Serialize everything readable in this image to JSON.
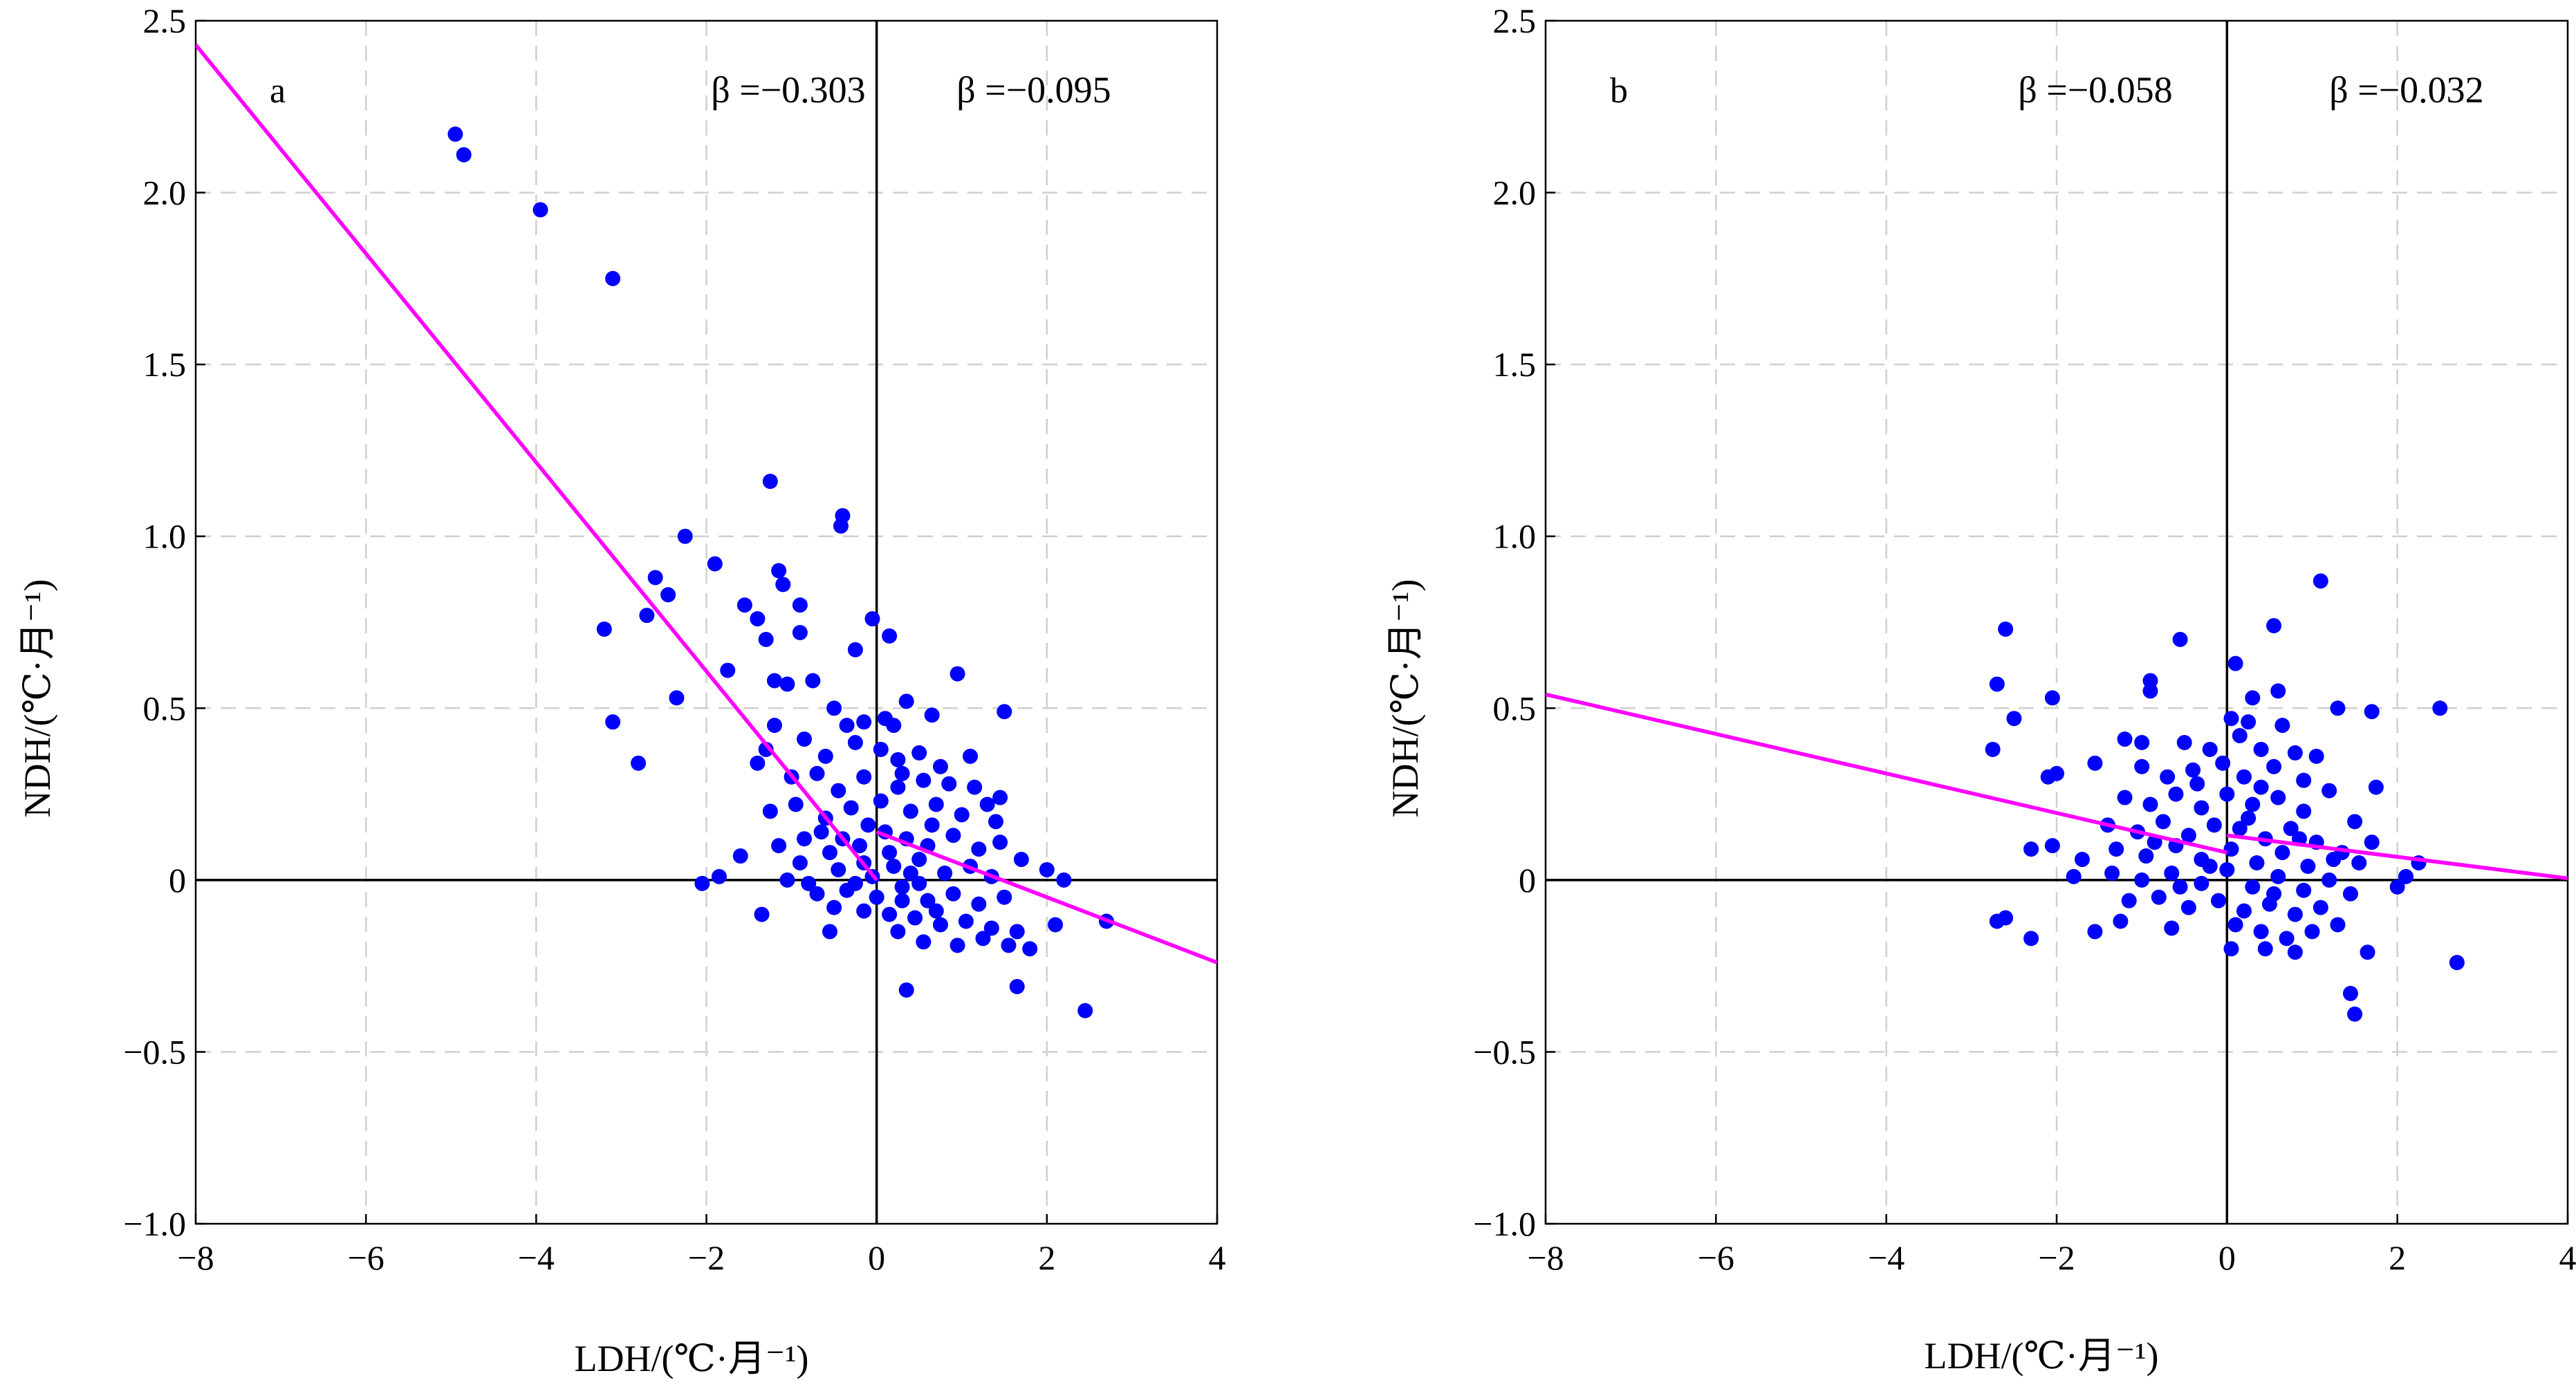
{
  "chart_data": [
    {
      "type": "scatter",
      "panel_label": "a",
      "xlabel": "LDH/(℃·月⁻¹)",
      "ylabel": "NDH/(℃·月⁻¹)",
      "xlim": [
        -8,
        4
      ],
      "ylim": [
        -1.0,
        2.5
      ],
      "xticks": [
        -8,
        -6,
        -4,
        -2,
        0,
        2,
        4
      ],
      "xtick_labels": [
        "−8",
        "−6",
        "−4",
        "−2",
        "0",
        "2",
        "4"
      ],
      "yticks": [
        -1.0,
        -0.5,
        0,
        0.5,
        1.0,
        1.5,
        2.0,
        2.5
      ],
      "ytick_labels": [
        "−1.0",
        "−0.5",
        "0",
        "0.5",
        "1.0",
        "1.5",
        "2.0",
        "2.5"
      ],
      "grid": true,
      "point_color": "#0000ff",
      "line_color": "#ff00ff",
      "fit_lines": [
        {
          "x": [
            -8,
            0
          ],
          "y": [
            2.43,
            0.0
          ],
          "beta_text": "β =−0.303"
        },
        {
          "x": [
            0,
            4
          ],
          "y": [
            0.14,
            -0.24
          ],
          "beta_text": "β =−0.095"
        }
      ],
      "points": [
        [
          -4.95,
          2.17
        ],
        [
          -4.85,
          2.11
        ],
        [
          -3.95,
          1.95
        ],
        [
          -3.1,
          1.75
        ],
        [
          -1.25,
          1.16
        ],
        [
          -0.4,
          1.06
        ],
        [
          -0.42,
          1.03
        ],
        [
          -2.25,
          1.0
        ],
        [
          -2.6,
          0.88
        ],
        [
          -2.45,
          0.83
        ],
        [
          -1.9,
          0.92
        ],
        [
          -1.15,
          0.9
        ],
        [
          -1.1,
          0.86
        ],
        [
          -3.2,
          0.73
        ],
        [
          -2.7,
          0.77
        ],
        [
          -1.55,
          0.8
        ],
        [
          -1.4,
          0.76
        ],
        [
          -0.9,
          0.8
        ],
        [
          -0.9,
          0.72
        ],
        [
          -1.3,
          0.7
        ],
        [
          -1.75,
          0.61
        ],
        [
          -0.05,
          0.76
        ],
        [
          0.15,
          0.71
        ],
        [
          -0.25,
          0.67
        ],
        [
          -1.2,
          0.58
        ],
        [
          -0.75,
          0.58
        ],
        [
          -1.05,
          0.57
        ],
        [
          0.95,
          0.6
        ],
        [
          -2.35,
          0.53
        ],
        [
          -3.1,
          0.46
        ],
        [
          -0.5,
          0.5
        ],
        [
          0.35,
          0.52
        ],
        [
          -0.35,
          0.45
        ],
        [
          -0.15,
          0.46
        ],
        [
          0.1,
          0.47
        ],
        [
          0.2,
          0.45
        ],
        [
          0.65,
          0.48
        ],
        [
          1.5,
          0.49
        ],
        [
          -2.8,
          0.34
        ],
        [
          -1.3,
          0.38
        ],
        [
          -1.2,
          0.45
        ],
        [
          -0.85,
          0.41
        ],
        [
          -0.6,
          0.36
        ],
        [
          -0.25,
          0.4
        ],
        [
          0.05,
          0.38
        ],
        [
          0.25,
          0.35
        ],
        [
          0.5,
          0.37
        ],
        [
          0.75,
          0.33
        ],
        [
          1.1,
          0.36
        ],
        [
          1.45,
          0.24
        ],
        [
          -1.4,
          0.34
        ],
        [
          -1.0,
          0.3
        ],
        [
          -0.7,
          0.31
        ],
        [
          -0.45,
          0.26
        ],
        [
          -0.15,
          0.3
        ],
        [
          0.3,
          0.31
        ],
        [
          0.55,
          0.29
        ],
        [
          0.85,
          0.28
        ],
        [
          1.15,
          0.27
        ],
        [
          1.3,
          0.22
        ],
        [
          -1.6,
          0.07
        ],
        [
          -1.85,
          0.01
        ],
        [
          -2.05,
          -0.01
        ],
        [
          -1.35,
          -0.1
        ],
        [
          -1.25,
          0.2
        ],
        [
          -0.95,
          0.22
        ],
        [
          -0.6,
          0.18
        ],
        [
          -0.3,
          0.21
        ],
        [
          0.05,
          0.23
        ],
        [
          0.4,
          0.2
        ],
        [
          0.7,
          0.22
        ],
        [
          1.0,
          0.19
        ],
        [
          -1.15,
          0.1
        ],
        [
          -0.85,
          0.12
        ],
        [
          -0.55,
          0.08
        ],
        [
          -0.2,
          0.1
        ],
        [
          0.1,
          0.14
        ],
        [
          0.35,
          0.12
        ],
        [
          0.6,
          0.1
        ],
        [
          0.9,
          0.13
        ],
        [
          1.2,
          0.09
        ],
        [
          1.45,
          0.11
        ],
        [
          1.7,
          0.06
        ],
        [
          2.0,
          0.03
        ],
        [
          2.2,
          0.0
        ],
        [
          -1.05,
          0.0
        ],
        [
          -0.8,
          -0.01
        ],
        [
          -0.45,
          0.03
        ],
        [
          -0.15,
          0.05
        ],
        [
          0.2,
          0.04
        ],
        [
          0.5,
          0.06
        ],
        [
          0.8,
          0.02
        ],
        [
          1.1,
          0.04
        ],
        [
          1.35,
          0.01
        ],
        [
          -0.7,
          -0.04
        ],
        [
          -0.35,
          -0.03
        ],
        [
          0.0,
          -0.05
        ],
        [
          0.3,
          -0.02
        ],
        [
          0.6,
          -0.06
        ],
        [
          0.9,
          -0.04
        ],
        [
          1.2,
          -0.07
        ],
        [
          1.5,
          -0.05
        ],
        [
          -0.5,
          -0.08
        ],
        [
          -0.15,
          -0.09
        ],
        [
          0.15,
          -0.1
        ],
        [
          0.45,
          -0.11
        ],
        [
          0.75,
          -0.13
        ],
        [
          1.05,
          -0.12
        ],
        [
          1.35,
          -0.14
        ],
        [
          1.65,
          -0.15
        ],
        [
          -0.55,
          -0.15
        ],
        [
          0.25,
          -0.15
        ],
        [
          0.55,
          -0.18
        ],
        [
          0.95,
          -0.19
        ],
        [
          1.25,
          -0.17
        ],
        [
          1.55,
          -0.19
        ],
        [
          1.8,
          -0.2
        ],
        [
          2.1,
          -0.13
        ],
        [
          2.7,
          -0.12
        ],
        [
          1.65,
          -0.31
        ],
        [
          0.35,
          -0.32
        ],
        [
          2.45,
          -0.38
        ],
        [
          -0.9,
          0.05
        ],
        [
          -0.65,
          0.14
        ],
        [
          -0.4,
          0.12
        ],
        [
          -0.1,
          0.16
        ],
        [
          0.15,
          0.08
        ],
        [
          0.4,
          0.02
        ],
        [
          0.65,
          0.16
        ],
        [
          0.25,
          0.27
        ],
        [
          -0.05,
          0.01
        ],
        [
          0.3,
          -0.06
        ],
        [
          0.7,
          -0.09
        ],
        [
          1.4,
          0.17
        ],
        [
          0.5,
          -0.01
        ],
        [
          -0.25,
          -0.01
        ]
      ]
    },
    {
      "type": "scatter",
      "panel_label": "b",
      "xlabel": "LDH/(℃·月⁻¹)",
      "ylabel": "NDH/(℃·月⁻¹)",
      "xlim": [
        -8,
        4
      ],
      "ylim": [
        -1.0,
        2.5
      ],
      "xticks": [
        -8,
        -6,
        -4,
        -2,
        0,
        2,
        4
      ],
      "xtick_labels": [
        "−8",
        "−6",
        "−4",
        "−2",
        "0",
        "2",
        "4"
      ],
      "yticks": [
        -1.0,
        -0.5,
        0,
        0.5,
        1.0,
        1.5,
        2.0,
        2.5
      ],
      "ytick_labels": [
        "−1.0",
        "−0.5",
        "0",
        "0.5",
        "1.0",
        "1.5",
        "2.0",
        "2.5"
      ],
      "grid": true,
      "point_color": "#0000ff",
      "line_color": "#ff00ff",
      "fit_lines": [
        {
          "x": [
            -8,
            0
          ],
          "y": [
            0.54,
            0.08
          ],
          "beta_text": "β =−0.058"
        },
        {
          "x": [
            0,
            4
          ],
          "y": [
            0.13,
            0.005
          ],
          "beta_text": "β =−0.032"
        }
      ],
      "points": [
        [
          1.1,
          0.87
        ],
        [
          -2.6,
          0.73
        ],
        [
          0.55,
          0.74
        ],
        [
          -0.55,
          0.7
        ],
        [
          0.1,
          0.63
        ],
        [
          -2.7,
          0.57
        ],
        [
          -0.9,
          0.58
        ],
        [
          -0.9,
          0.55
        ],
        [
          0.3,
          0.53
        ],
        [
          -2.05,
          0.53
        ],
        [
          0.6,
          0.55
        ],
        [
          1.3,
          0.5
        ],
        [
          1.7,
          0.49
        ],
        [
          2.5,
          0.5
        ],
        [
          -2.5,
          0.47
        ],
        [
          0.05,
          0.47
        ],
        [
          0.25,
          0.46
        ],
        [
          0.65,
          0.45
        ],
        [
          -2.75,
          0.38
        ],
        [
          -1.2,
          0.41
        ],
        [
          -1.0,
          0.4
        ],
        [
          -0.5,
          0.4
        ],
        [
          -0.2,
          0.38
        ],
        [
          0.15,
          0.42
        ],
        [
          0.4,
          0.38
        ],
        [
          0.8,
          0.37
        ],
        [
          1.05,
          0.36
        ],
        [
          -1.55,
          0.34
        ],
        [
          -1.0,
          0.33
        ],
        [
          -0.7,
          0.3
        ],
        [
          -0.4,
          0.32
        ],
        [
          -0.05,
          0.34
        ],
        [
          0.2,
          0.3
        ],
        [
          0.55,
          0.33
        ],
        [
          0.9,
          0.29
        ],
        [
          1.2,
          0.26
        ],
        [
          1.75,
          0.27
        ],
        [
          -2.1,
          0.3
        ],
        [
          -2.0,
          0.31
        ],
        [
          -1.2,
          0.24
        ],
        [
          -0.9,
          0.22
        ],
        [
          -0.6,
          0.25
        ],
        [
          -0.3,
          0.21
        ],
        [
          0.0,
          0.25
        ],
        [
          0.3,
          0.22
        ],
        [
          0.6,
          0.24
        ],
        [
          0.9,
          0.2
        ],
        [
          1.5,
          0.17
        ],
        [
          -1.4,
          0.16
        ],
        [
          -1.05,
          0.14
        ],
        [
          -0.75,
          0.17
        ],
        [
          -0.45,
          0.13
        ],
        [
          -0.15,
          0.16
        ],
        [
          0.15,
          0.15
        ],
        [
          0.45,
          0.12
        ],
        [
          0.75,
          0.15
        ],
        [
          1.05,
          0.11
        ],
        [
          1.35,
          0.08
        ],
        [
          -2.3,
          0.09
        ],
        [
          -2.05,
          0.1
        ],
        [
          -1.7,
          0.06
        ],
        [
          -1.3,
          0.09
        ],
        [
          -0.95,
          0.07
        ],
        [
          -0.6,
          0.1
        ],
        [
          -0.3,
          0.06
        ],
        [
          0.05,
          0.09
        ],
        [
          0.35,
          0.05
        ],
        [
          0.65,
          0.08
        ],
        [
          0.95,
          0.04
        ],
        [
          1.25,
          0.06
        ],
        [
          1.55,
          0.05
        ],
        [
          2.25,
          0.05
        ],
        [
          2.1,
          0.01
        ],
        [
          -1.8,
          0.01
        ],
        [
          -1.35,
          0.02
        ],
        [
          -1.0,
          0.0
        ],
        [
          -0.65,
          0.02
        ],
        [
          -0.3,
          -0.01
        ],
        [
          0.0,
          0.03
        ],
        [
          0.3,
          -0.02
        ],
        [
          0.6,
          0.01
        ],
        [
          0.9,
          -0.03
        ],
        [
          1.2,
          0.0
        ],
        [
          1.45,
          -0.04
        ],
        [
          2.0,
          -0.02
        ],
        [
          -1.15,
          -0.06
        ],
        [
          -0.8,
          -0.05
        ],
        [
          -0.45,
          -0.08
        ],
        [
          -0.1,
          -0.06
        ],
        [
          0.2,
          -0.09
        ],
        [
          0.5,
          -0.07
        ],
        [
          0.8,
          -0.1
        ],
        [
          1.1,
          -0.08
        ],
        [
          -1.25,
          -0.12
        ],
        [
          -0.65,
          -0.14
        ],
        [
          0.1,
          -0.13
        ],
        [
          0.4,
          -0.15
        ],
        [
          0.7,
          -0.17
        ],
        [
          1.0,
          -0.15
        ],
        [
          1.3,
          -0.13
        ],
        [
          -2.7,
          -0.12
        ],
        [
          -2.6,
          -0.11
        ],
        [
          -2.3,
          -0.17
        ],
        [
          -1.55,
          -0.15
        ],
        [
          0.05,
          -0.2
        ],
        [
          0.45,
          -0.2
        ],
        [
          0.8,
          -0.21
        ],
        [
          1.65,
          -0.21
        ],
        [
          1.45,
          -0.33
        ],
        [
          1.5,
          -0.39
        ],
        [
          2.7,
          -0.24
        ],
        [
          -0.2,
          0.04
        ],
        [
          0.25,
          0.18
        ],
        [
          -0.55,
          -0.02
        ],
        [
          0.55,
          -0.04
        ],
        [
          -0.85,
          0.11
        ],
        [
          0.85,
          0.12
        ],
        [
          1.7,
          0.11
        ],
        [
          -0.35,
          0.28
        ],
        [
          0.4,
          0.27
        ]
      ]
    }
  ]
}
